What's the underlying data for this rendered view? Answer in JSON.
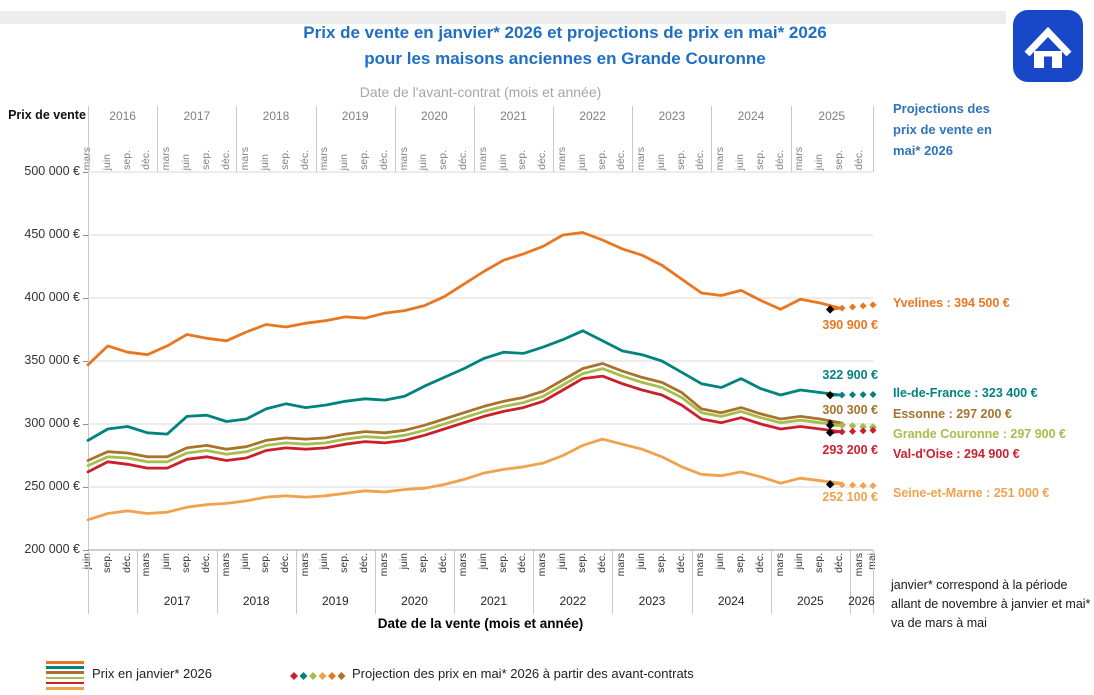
{
  "title": {
    "line1": "Prix de vente en janvier* 2026 et projections de prix en mai* 2026",
    "line2": "pour les maisons anciennes en Grande Couronne"
  },
  "colors": {
    "title_blue": "#1F6FC2",
    "header_blue": "#2E74BE",
    "icon_blue": "#1847C7",
    "grid": "#D9D9D9",
    "axis_gray": "#808080",
    "projection_start_marker": "#000000"
  },
  "house_icon": {
    "name": "home-icon"
  },
  "y_axis": {
    "label": "Prix de vente",
    "ticks": [
      "500 000 €",
      "450 000 €",
      "400 000 €",
      "350 000 €",
      "300 000 €",
      "250 000 €",
      "200 000 €"
    ]
  },
  "top_axis": {
    "title": "Date de l'avant-contrat (mois et année)",
    "month_cycle": [
      "mars",
      "juin",
      "sep.",
      "déc."
    ],
    "years": [
      "2016",
      "2017",
      "2018",
      "2019",
      "2020",
      "2021",
      "2022",
      "2023",
      "2024",
      "2025"
    ]
  },
  "bottom_axis": {
    "title": "Date de la vente (mois et année)",
    "month_cycle": [
      "juin",
      "sep.",
      "déc.",
      "mars"
    ],
    "extra_month": "mai",
    "years": [
      "",
      "2017",
      "2018",
      "2019",
      "2020",
      "2021",
      "2022",
      "2023",
      "2024",
      "2025",
      "2026"
    ]
  },
  "right_panel": {
    "header": "Projections des prix de vente en mai* 2026",
    "note": "janvier* correspond à la période allant de novembre à janvier et mai* va de mars à mai"
  },
  "legend": {
    "line_label": "Prix en janvier* 2026",
    "projection_label": "Projection des prix en mai* 2026 à partir des avant-contrats",
    "diamond_colors": [
      "#CC1F2D",
      "#00837E",
      "#A6BE4B",
      "#F0A24C",
      "#E87722",
      "#A8732B"
    ]
  },
  "chart_data": {
    "type": "line",
    "title": "Prix de vente des maisons anciennes en Grande Couronne",
    "x_description": "Valeurs trimestrielles, date de l'avant-contrat de mars 2016 à septembre 2025, puis prix en janvier* 2026 et projection en mai* 2026",
    "x_step_months": 3,
    "x_start": "mars 2016",
    "x_solid_end": "sep. 2025",
    "ylim": [
      200000,
      500000
    ],
    "y_gridlines": [
      500000,
      450000,
      400000,
      350000,
      300000,
      250000,
      200000
    ],
    "unit": "milliers d'euros",
    "series": [
      {
        "id": "yvelines",
        "name": "Yvelines",
        "color": "#E87722",
        "panel_label": "Yvelines : 394 500 €",
        "end_label": "390 900 €",
        "end_value_k": 390.9,
        "projection_value_k": 394.5,
        "values_k": [
          347,
          362,
          357,
          355,
          362,
          371,
          368,
          366,
          373,
          379,
          377,
          380,
          382,
          385,
          384,
          388,
          390,
          394,
          401,
          411,
          421,
          430,
          435,
          441,
          450,
          452,
          446,
          439,
          434,
          426,
          415,
          404,
          402,
          406,
          398,
          391,
          399,
          396,
          392
        ]
      },
      {
        "id": "ile_de_france",
        "name": "Ile-de-France",
        "color": "#00837E",
        "panel_label": "Ile-de-France : 323 400 €",
        "end_label": "322 900 €",
        "end_value_k": 322.9,
        "projection_value_k": 323.4,
        "values_k": [
          287,
          296,
          298,
          293,
          292,
          306,
          307,
          302,
          304,
          312,
          316,
          313,
          315,
          318,
          320,
          319,
          322,
          330,
          337,
          344,
          352,
          357,
          356,
          361,
          367,
          374,
          366,
          358,
          355,
          350,
          341,
          332,
          329,
          336,
          328,
          323,
          327,
          325,
          323
        ]
      },
      {
        "id": "essonne",
        "name": "Essonne",
        "color": "#A8732B",
        "panel_label": "Essonne : 297 200 €",
        "end_label": "300 300 €",
        "end_value_k": 300.3,
        "projection_value_k": 297.2,
        "values_k": [
          271,
          278,
          277,
          274,
          274,
          281,
          283,
          280,
          282,
          287,
          289,
          288,
          289,
          292,
          294,
          293,
          295,
          299,
          304,
          309,
          314,
          318,
          321,
          326,
          335,
          344,
          348,
          342,
          337,
          333,
          325,
          312,
          309,
          313,
          308,
          304,
          306,
          304,
          301
        ]
      },
      {
        "id": "grande_couronne",
        "name": "Grande Couronne",
        "color": "#A6BE4B",
        "panel_label": "Grande Couronne : 297 900 €",
        "end_label": null,
        "end_value_k": 299,
        "projection_value_k": 297.9,
        "values_k": [
          267,
          274,
          273,
          270,
          270,
          277,
          279,
          276,
          278,
          283,
          285,
          284,
          285,
          288,
          290,
          289,
          291,
          295,
          300,
          305,
          310,
          314,
          317,
          322,
          331,
          340,
          344,
          338,
          333,
          329,
          321,
          309,
          306,
          310,
          305,
          301,
          303,
          301,
          299
        ]
      },
      {
        "id": "val_doise",
        "name": "Val-d'Oise",
        "color": "#CC1F2D",
        "panel_label": "Val-d'Oise : 294 900 €",
        "end_label": "293 200 €",
        "end_value_k": 293.2,
        "projection_value_k": 294.9,
        "values_k": [
          262,
          270,
          268,
          265,
          265,
          272,
          274,
          271,
          273,
          279,
          281,
          280,
          281,
          284,
          286,
          285,
          287,
          291,
          296,
          301,
          306,
          310,
          313,
          318,
          327,
          336,
          338,
          332,
          327,
          323,
          315,
          304,
          301,
          305,
          300,
          296,
          298,
          296,
          294
        ]
      },
      {
        "id": "seine_et_marne",
        "name": "Seine-et-Marne",
        "color": "#F0A24C",
        "panel_label": "Seine-et-Marne : 251 000 €",
        "end_label": "252 100 €",
        "end_value_k": 252.1,
        "projection_value_k": 251.0,
        "values_k": [
          224,
          229,
          231,
          229,
          230,
          234,
          236,
          237,
          239,
          242,
          243,
          242,
          243,
          245,
          247,
          246,
          248,
          249,
          252,
          256,
          261,
          264,
          266,
          269,
          275,
          283,
          288,
          284,
          280,
          274,
          266,
          260,
          259,
          262,
          258,
          253,
          257,
          255,
          253
        ]
      }
    ]
  }
}
